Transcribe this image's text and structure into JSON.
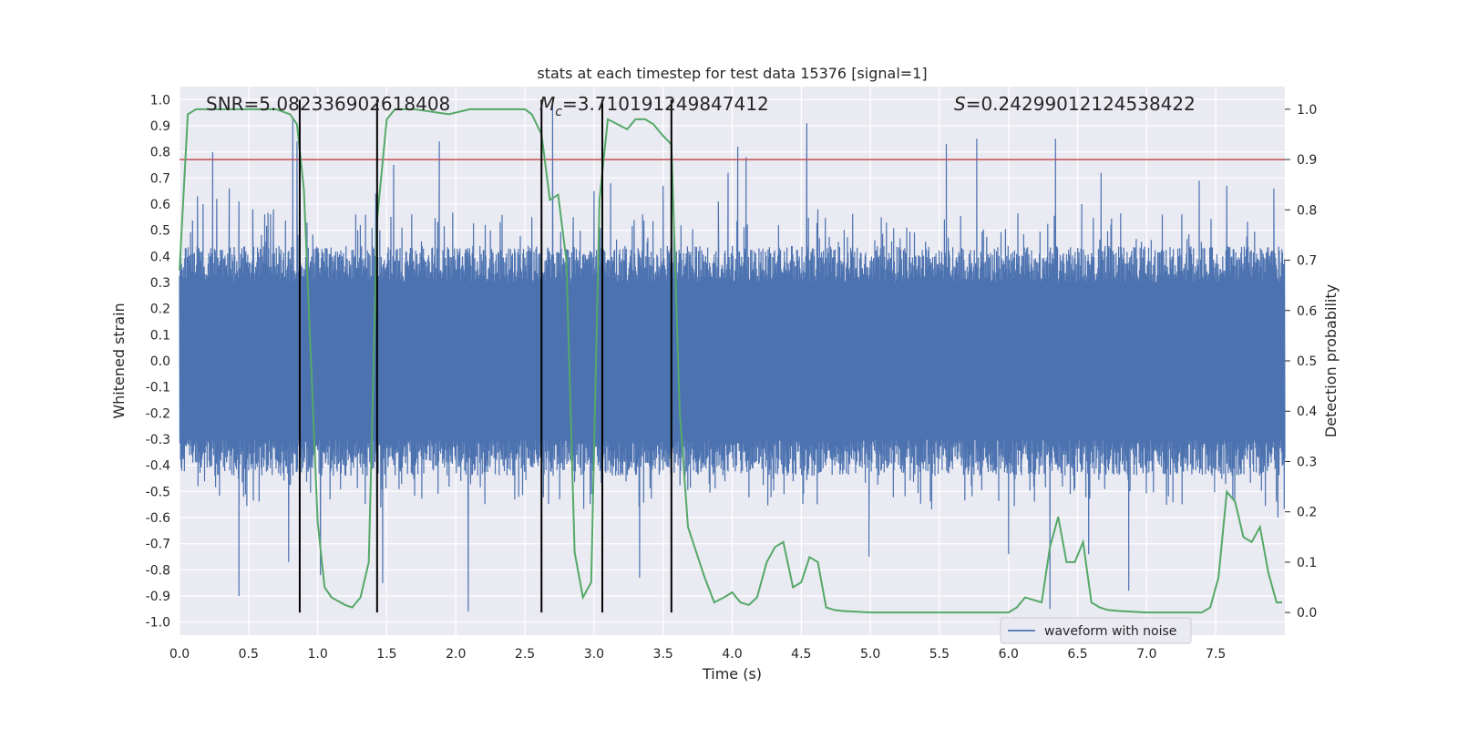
{
  "chart_data": {
    "type": "line",
    "title": "stats at each timestep for test data 15376 [signal=1]",
    "xlabel": "Time (s)",
    "ylabel": "Whitened strain",
    "y2label": "Detection probability",
    "xlim": [
      0.0,
      8.0
    ],
    "ylim": [
      -1.05,
      1.05
    ],
    "y2lim": [
      -0.045,
      1.045
    ],
    "grid": true,
    "legend_position": "bottom-right",
    "x_ticks": [
      "0.0",
      "0.5",
      "1.0",
      "1.5",
      "2.0",
      "2.5",
      "3.0",
      "3.5",
      "4.0",
      "4.5",
      "5.0",
      "5.5",
      "6.0",
      "6.5",
      "7.0",
      "7.5"
    ],
    "y_ticks": [
      "1.0",
      "0.9",
      "0.8",
      "0.7",
      "0.6",
      "0.5",
      "0.4",
      "0.3",
      "0.2",
      "0.1",
      "0.0",
      "-0.1",
      "-0.2",
      "-0.3",
      "-0.4",
      "-0.5",
      "-0.6",
      "-0.7",
      "-0.8",
      "-0.9",
      "-1.0"
    ],
    "y2_ticks": [
      "1.0",
      "0.9",
      "0.8",
      "0.7",
      "0.6",
      "0.5",
      "0.4",
      "0.3",
      "0.2",
      "0.1",
      "0.0"
    ],
    "annotations": {
      "snr": "SNR=5.082336902618408",
      "mc_symbol": "M",
      "mc_sub": "c",
      "mc_value": "=3.710191249847412",
      "s_symbol": "S",
      "s_value": "=0.24299012124538422"
    },
    "threshold": {
      "y2": 0.9,
      "color": "#c44e52"
    },
    "vertical_lines": [
      0.87,
      1.43,
      2.62,
      3.06,
      3.56
    ],
    "series": [
      {
        "name": "waveform with noise",
        "axis": "left",
        "color": "#4c72b0",
        "envelope_note": "dense noise between about -0.4 and 0.4 with spikes",
        "spikes": [
          [
            0.13,
            0.63
          ],
          [
            0.17,
            0.6
          ],
          [
            0.24,
            0.8
          ],
          [
            0.27,
            0.62
          ],
          [
            0.36,
            0.66
          ],
          [
            0.43,
            0.61
          ],
          [
            0.43,
            -0.9
          ],
          [
            0.53,
            0.58
          ],
          [
            0.68,
            0.58
          ],
          [
            0.79,
            -0.77
          ],
          [
            0.82,
            0.93
          ],
          [
            0.85,
            0.84
          ],
          [
            1.02,
            -0.82
          ],
          [
            1.29,
            0.5
          ],
          [
            1.42,
            0.64
          ],
          [
            1.43,
            0.67
          ],
          [
            1.47,
            -0.85
          ],
          [
            1.55,
            0.75
          ],
          [
            1.88,
            0.84
          ],
          [
            2.09,
            -0.96
          ],
          [
            2.25,
            0.5
          ],
          [
            2.55,
            0.55
          ],
          [
            2.62,
            0.74
          ],
          [
            2.7,
            0.99
          ],
          [
            2.85,
            0.55
          ],
          [
            3.0,
            0.65
          ],
          [
            3.12,
            0.68
          ],
          [
            3.33,
            -0.83
          ],
          [
            3.5,
            0.67
          ],
          [
            3.9,
            0.61
          ],
          [
            3.97,
            0.72
          ],
          [
            4.04,
            0.82
          ],
          [
            4.1,
            0.78
          ],
          [
            4.54,
            0.91
          ],
          [
            4.62,
            0.58
          ],
          [
            4.99,
            -0.75
          ],
          [
            5.55,
            0.83
          ],
          [
            5.77,
            0.85
          ],
          [
            6.0,
            -0.74
          ],
          [
            6.3,
            -0.95
          ],
          [
            6.34,
            0.85
          ],
          [
            6.53,
            0.6
          ],
          [
            6.58,
            -0.74
          ],
          [
            6.67,
            0.72
          ],
          [
            6.87,
            -0.88
          ],
          [
            7.38,
            0.69
          ],
          [
            7.58,
            0.67
          ],
          [
            7.92,
            0.66
          ],
          [
            7.95,
            -0.6
          ]
        ]
      },
      {
        "name": "detection probability",
        "axis": "right",
        "color": "#55a868",
        "x": [
          0.0,
          0.06,
          0.12,
          0.3,
          0.5,
          0.7,
          0.8,
          0.85,
          0.9,
          1.0,
          1.05,
          1.1,
          1.2,
          1.25,
          1.31,
          1.37,
          1.43,
          1.5,
          1.56,
          1.7,
          1.95,
          2.1,
          2.5,
          2.55,
          2.62,
          2.68,
          2.74,
          2.8,
          2.86,
          2.92,
          2.98,
          3.04,
          3.1,
          3.17,
          3.24,
          3.3,
          3.37,
          3.43,
          3.49,
          3.56,
          3.62,
          3.68,
          3.74,
          3.8,
          3.87,
          3.94,
          4.0,
          4.06,
          4.12,
          4.18,
          4.25,
          4.31,
          4.37,
          4.44,
          4.5,
          4.56,
          4.62,
          4.68,
          4.74,
          4.8,
          5.0,
          5.2,
          5.6,
          5.8,
          6.0,
          6.06,
          6.12,
          6.18,
          6.24,
          6.3,
          6.36,
          6.42,
          6.48,
          6.54,
          6.6,
          6.66,
          6.72,
          6.8,
          7.0,
          7.2,
          7.4,
          7.46,
          7.52,
          7.58,
          7.64,
          7.7,
          7.76,
          7.82,
          7.88,
          7.94,
          7.98
        ],
        "y": [
          0.68,
          0.99,
          1.0,
          1.0,
          1.0,
          1.0,
          0.99,
          0.97,
          0.84,
          0.18,
          0.05,
          0.03,
          0.015,
          0.01,
          0.03,
          0.1,
          0.78,
          0.98,
          1.0,
          1.0,
          0.99,
          1.0,
          1.0,
          0.99,
          0.95,
          0.82,
          0.83,
          0.7,
          0.12,
          0.03,
          0.06,
          0.82,
          0.98,
          0.97,
          0.96,
          0.98,
          0.98,
          0.97,
          0.95,
          0.93,
          0.4,
          0.17,
          0.12,
          0.07,
          0.02,
          0.03,
          0.04,
          0.02,
          0.015,
          0.03,
          0.1,
          0.13,
          0.14,
          0.05,
          0.06,
          0.11,
          0.1,
          0.01,
          0.005,
          0.003,
          0.0,
          0.0,
          0.0,
          0.0,
          0.0,
          0.01,
          0.03,
          0.025,
          0.02,
          0.13,
          0.19,
          0.1,
          0.1,
          0.14,
          0.02,
          0.01,
          0.005,
          0.003,
          0.0,
          0.0,
          0.0,
          0.01,
          0.07,
          0.24,
          0.22,
          0.15,
          0.14,
          0.17,
          0.08,
          0.02,
          0.02
        ]
      }
    ]
  }
}
